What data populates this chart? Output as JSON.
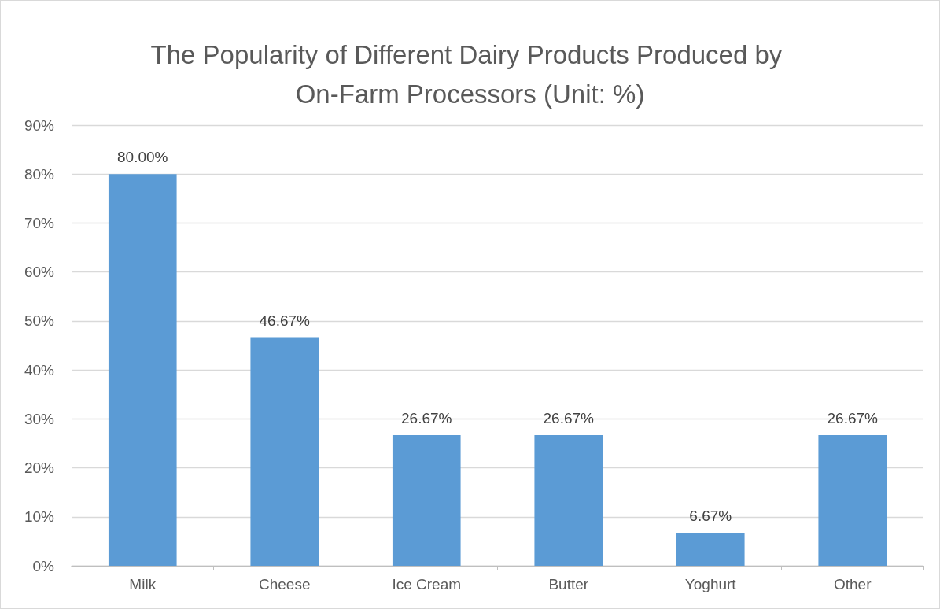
{
  "chart_data": {
    "type": "bar",
    "title": "The Popularity of Different Dairy Products Produced by On-Farm Processors (Unit: %)",
    "categories": [
      "Milk",
      "Cheese",
      "Ice Cream",
      "Butter",
      "Yoghurt",
      "Other"
    ],
    "values": [
      80,
      46.67,
      26.67,
      26.67,
      6.67,
      26.67
    ],
    "value_labels": [
      "80.00%",
      "46.67%",
      "26.67%",
      "26.67%",
      "6.67%",
      "26.67%"
    ],
    "color": "#5b9bd5",
    "ylim": [
      0,
      90
    ],
    "yticks": [
      {
        "value": 0,
        "label": "0%"
      },
      {
        "value": 10,
        "label": "10%"
      },
      {
        "value": 20,
        "label": "20%"
      },
      {
        "value": 30,
        "label": "30%"
      },
      {
        "value": 40,
        "label": "40%"
      },
      {
        "value": 50,
        "label": "50%"
      },
      {
        "value": 60,
        "label": "60%"
      },
      {
        "value": 70,
        "label": "70%"
      },
      {
        "value": 80,
        "label": "80%"
      },
      {
        "value": 90,
        "label": "90%"
      }
    ],
    "grid": "y"
  }
}
